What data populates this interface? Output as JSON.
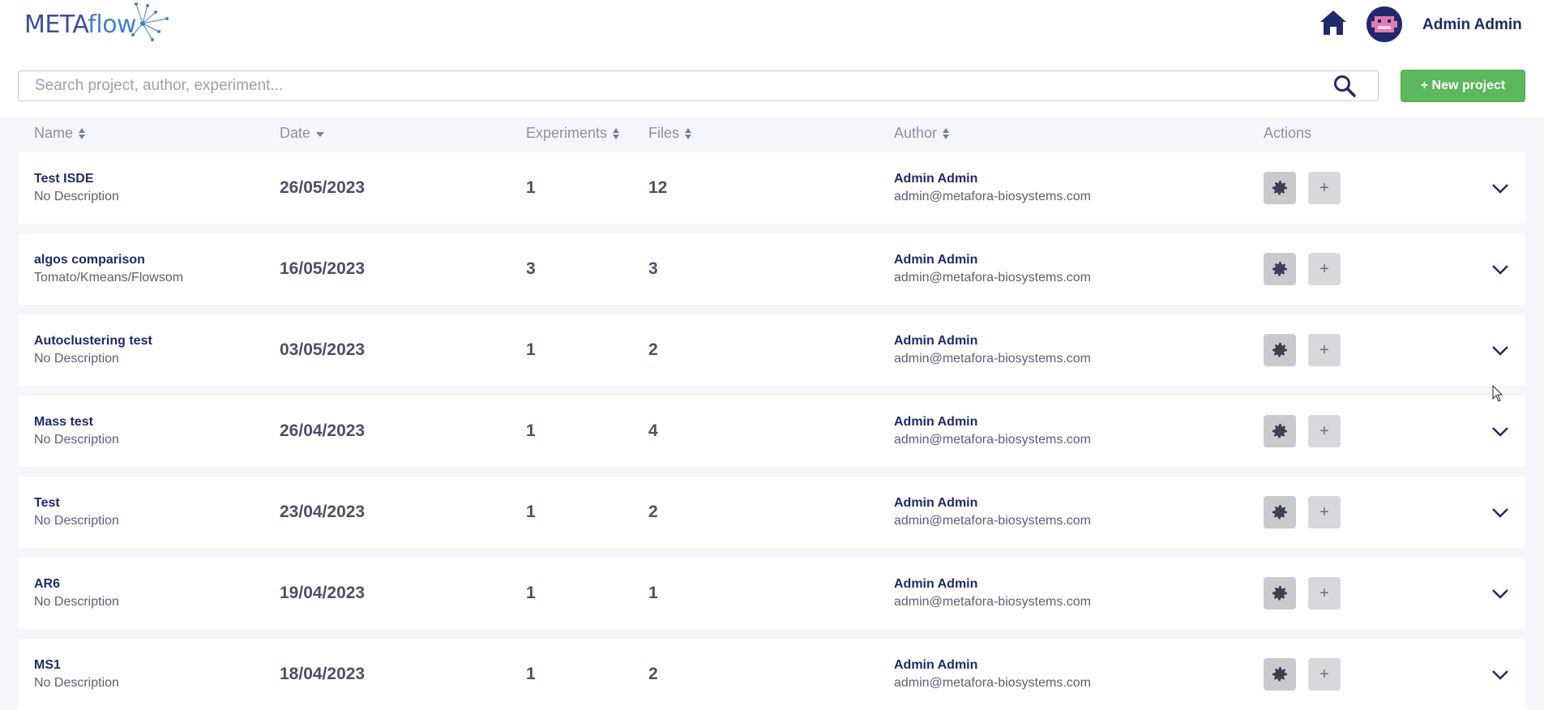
{
  "app": {
    "logo_text_a": "METAflow",
    "logo_main": "META",
    "logo_tail": "flow",
    "user_name": "Admin Admin"
  },
  "search": {
    "placeholder": "Search project, author, experiment..."
  },
  "toolbar": {
    "new_project_label": "+ New project"
  },
  "columns": {
    "name": "Name",
    "date": "Date",
    "experiments": "Experiments",
    "files": "Files",
    "author": "Author",
    "actions": "Actions"
  },
  "projects": [
    {
      "title": "Test ISDE",
      "desc": "No Description",
      "date": "26/05/2023",
      "experiments": "1",
      "files": "12",
      "author": "Admin Admin",
      "email": "admin@metafora-biosystems.com"
    },
    {
      "title": "algos comparison",
      "desc": "Tomato/Kmeans/Flowsom",
      "date": "16/05/2023",
      "experiments": "3",
      "files": "3",
      "author": "Admin Admin",
      "email": "admin@metafora-biosystems.com"
    },
    {
      "title": "Autoclustering test",
      "desc": "No Description",
      "date": "03/05/2023",
      "experiments": "1",
      "files": "2",
      "author": "Admin Admin",
      "email": "admin@metafora-biosystems.com"
    },
    {
      "title": "Mass test",
      "desc": "No Description",
      "date": "26/04/2023",
      "experiments": "1",
      "files": "4",
      "author": "Admin Admin",
      "email": "admin@metafora-biosystems.com"
    },
    {
      "title": "Test",
      "desc": "No Description",
      "date": "23/04/2023",
      "experiments": "1",
      "files": "2",
      "author": "Admin Admin",
      "email": "admin@metafora-biosystems.com"
    },
    {
      "title": "AR6",
      "desc": "No Description",
      "date": "19/04/2023",
      "experiments": "1",
      "files": "1",
      "author": "Admin Admin",
      "email": "admin@metafora-biosystems.com"
    },
    {
      "title": "MS1",
      "desc": "No Description",
      "date": "18/04/2023",
      "experiments": "1",
      "files": "2",
      "author": "Admin Admin",
      "email": "admin@metafora-biosystems.com"
    }
  ],
  "icons": {
    "home": "home-icon",
    "search": "search-icon",
    "gear": "gear-icon",
    "plus": "plus-icon",
    "chevron": "chevron-down-icon",
    "sort": "sort-icon"
  },
  "colors": {
    "brand_navy": "#1f2a6b",
    "accent_green": "#5cb85c",
    "page_bg": "#f4f6fb"
  }
}
